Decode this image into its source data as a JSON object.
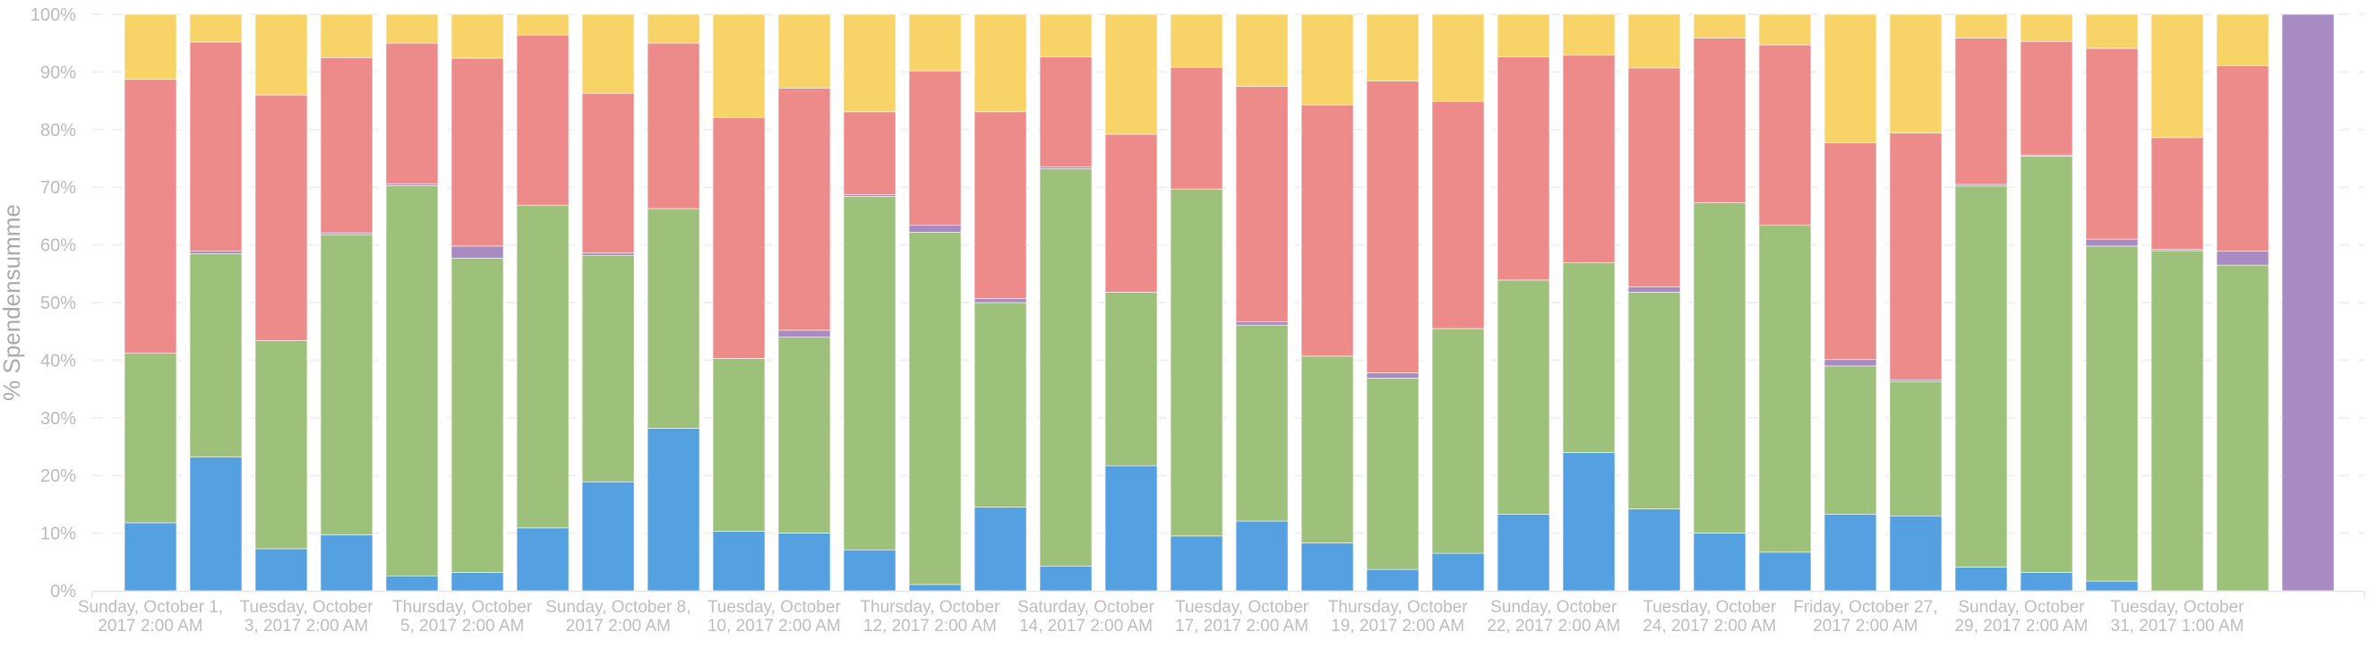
{
  "chart_data": {
    "type": "bar",
    "stacking": "percent",
    "title": "",
    "xlabel": "",
    "ylabel": "% Spendensumme",
    "ylim": [
      0,
      100
    ],
    "yticks": [
      "0%",
      "10%",
      "20%",
      "30%",
      "40%",
      "50%",
      "60%",
      "70%",
      "80%",
      "90%",
      "100%"
    ],
    "grid": true,
    "legend": "none",
    "bar_count": 34,
    "xtick_labels": [
      {
        "bar": 0,
        "label": "Sunday, October 1, 2017 2:00 AM"
      },
      {
        "bar": 2,
        "label": "Tuesday, October 3, 2017 2:00 AM"
      },
      {
        "bar": 5,
        "label": "Thursday, October 5, 2017 2:00 AM"
      },
      {
        "bar": 7,
        "label": "Sunday, October 8, 2017 2:00 AM"
      },
      {
        "bar": 10,
        "label": "Tuesday, October 10, 2017 2:00 AM"
      },
      {
        "bar": 12,
        "label": "Thursday, October 12, 2017 2:00 AM"
      },
      {
        "bar": 14,
        "label": "Saturday, October 14, 2017 2:00 AM"
      },
      {
        "bar": 17,
        "label": "Tuesday, October 17, 2017 2:00 AM"
      },
      {
        "bar": 19,
        "label": "Thursday, October 19, 2017 2:00 AM"
      },
      {
        "bar": 21,
        "label": "Sunday, October 22, 2017 2:00 AM"
      },
      {
        "bar": 24,
        "label": "Tuesday, October 24, 2017 2:00 AM"
      },
      {
        "bar": 26,
        "label": "Friday, October 27, 2017 2:00 AM"
      },
      {
        "bar": 29,
        "label": "Sunday, October 29, 2017 2:00 AM"
      },
      {
        "bar": 31,
        "label": "Tuesday, October 31, 2017 1:00 AM"
      }
    ],
    "series": [
      {
        "color": "#55a0e0",
        "values": [
          11.8,
          23.2,
          7.3,
          9.7,
          2.6,
          3.2,
          10.9,
          18.9,
          28.2,
          10.3,
          10,
          7.1,
          1.1,
          14.5,
          4.3,
          21.7,
          9.5,
          12.1,
          8.3,
          3.7,
          6.5,
          13.3,
          24,
          14.2,
          10,
          6.7,
          13.3,
          13,
          4.1,
          3.2,
          1.7,
          0,
          0,
          0
        ]
      },
      {
        "color": "#9dc17a",
        "values": [
          29.4,
          35.3,
          36.1,
          52.1,
          67.7,
          54.5,
          56,
          39.3,
          38.1,
          30,
          34,
          61.3,
          61.1,
          35.5,
          68.9,
          30.1,
          60.2,
          34,
          32.4,
          33.2,
          39,
          40.6,
          32.9,
          37.6,
          57.3,
          56.7,
          25.7,
          23.3,
          66.1,
          72.2,
          58.1,
          59,
          56.5,
          0
        ]
      },
      {
        "color": "#a78bc2",
        "values": [
          0,
          0.4,
          0,
          0.3,
          0.3,
          2.1,
          0,
          0.4,
          0,
          0,
          1.2,
          0.3,
          1.2,
          0.7,
          0.3,
          0,
          0,
          0.6,
          0,
          0.9,
          0,
          0,
          0,
          0.9,
          0,
          0,
          1.1,
          0.3,
          0.3,
          0.2,
          1.2,
          0.2,
          2.4,
          100
        ]
      },
      {
        "color": "#ed8b8b",
        "values": [
          47.5,
          36.3,
          42.6,
          30.4,
          24.4,
          32.6,
          29.5,
          27.7,
          28.7,
          41.8,
          42,
          14.4,
          26.8,
          32.4,
          19.1,
          27.4,
          21.1,
          40.8,
          43.6,
          50.6,
          39.4,
          38.7,
          36,
          38,
          28.6,
          31.3,
          37.6,
          42.8,
          25.4,
          19.7,
          33.1,
          19.4,
          32.2,
          0
        ]
      },
      {
        "color": "#f8d468",
        "values": [
          11.3,
          4.8,
          14,
          7.5,
          5,
          7.6,
          3.6,
          13.7,
          5,
          17.9,
          12.8,
          16.9,
          9.8,
          16.9,
          7.4,
          20.8,
          9.2,
          12.5,
          15.7,
          11.6,
          15.1,
          7.4,
          7.1,
          9.3,
          4.1,
          5.3,
          22.3,
          20.6,
          4.1,
          4.7,
          5.9,
          21.4,
          8.9,
          0
        ]
      }
    ]
  }
}
